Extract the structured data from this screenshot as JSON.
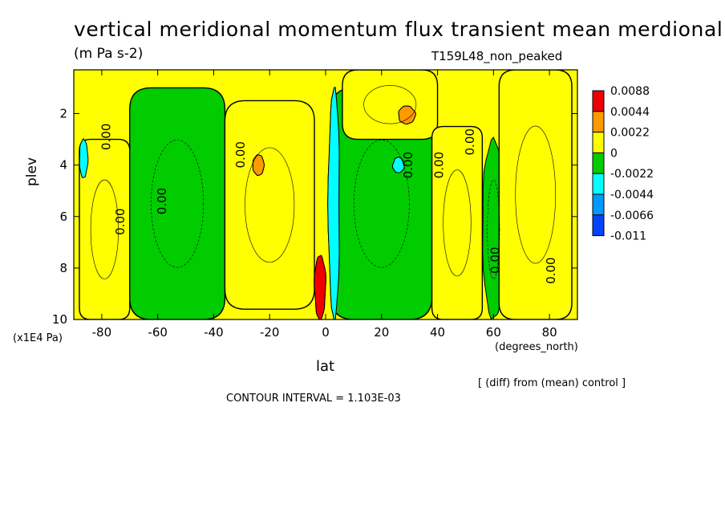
{
  "chart_data": {
    "type": "heatmap",
    "title": "vertical meridional momentum flux transient mean merdional",
    "units": "(m Pa s-2)",
    "case_label": "T159L48_non_peaked",
    "xlabel": "lat",
    "xunits": "(degrees_north)",
    "ylabel": "plev",
    "yunits": "(x1E4 Pa)",
    "xlim": [
      -90,
      90
    ],
    "ylim": [
      0.3,
      10
    ],
    "y_inverted": true,
    "x_ticks": [
      -80,
      -60,
      -40,
      -20,
      0,
      20,
      40,
      60,
      80
    ],
    "y_ticks": [
      2,
      4,
      6,
      8,
      10
    ],
    "difference_note": "[ (diff) from (mean) control ]",
    "contour_interval": "CONTOUR INTERVAL = 1.103E-03",
    "contour_label": "0.00",
    "legend": {
      "position": "right",
      "levels": [
        "0.0088",
        "0.0044",
        "0.0022",
        "0",
        "-0.0022",
        "-0.0044",
        "-0.0066",
        "-0.011"
      ],
      "colors": [
        "#ee0000",
        "#ff9900",
        "#ffff00",
        "#00cc00",
        "#00ffff",
        "#0099ff",
        "#0044ff"
      ]
    },
    "regions": [
      {
        "class": "positive",
        "lat": [
          -88,
          -70
        ],
        "plev": [
          3,
          10
        ],
        "color": "#ffff00"
      },
      {
        "class": "positive",
        "lat": [
          -36,
          -4
        ],
        "plev": [
          1.5,
          9.6
        ],
        "color": "#ffff00"
      },
      {
        "class": "positive",
        "lat": [
          6,
          40
        ],
        "plev": [
          0.3,
          3
        ],
        "color": "#ffff00"
      },
      {
        "class": "positive",
        "lat": [
          38,
          56
        ],
        "plev": [
          2.5,
          10
        ],
        "color": "#ffff00"
      },
      {
        "class": "positive",
        "lat": [
          62,
          88
        ],
        "plev": [
          0.3,
          10
        ],
        "color": "#ffff00"
      },
      {
        "class": "negative",
        "lat": [
          -70,
          -36
        ],
        "plev": [
          1,
          10
        ],
        "color": "#00cc00"
      },
      {
        "class": "negative",
        "lat": [
          2,
          38
        ],
        "plev": [
          1,
          10
        ],
        "color": "#00cc00"
      },
      {
        "class": "negative",
        "lat": [
          56,
          64
        ],
        "plev": [
          3,
          10
        ],
        "color": "#00cc00"
      },
      {
        "class": "local maximum",
        "lat": [
          -26,
          -22
        ],
        "plev": [
          3.6,
          4.4
        ],
        "color": "#ff9900"
      },
      {
        "class": "local maximum",
        "lat": [
          26,
          32
        ],
        "plev": [
          1.7,
          2.4
        ],
        "color": "#ff9900"
      },
      {
        "class": "local maximum",
        "lat": [
          -4,
          0
        ],
        "plev": [
          7.5,
          10
        ],
        "color": "#ee0000"
      },
      {
        "class": "local minimum",
        "lat": [
          1,
          5
        ],
        "plev": [
          1,
          10
        ],
        "color": "#00ffff"
      },
      {
        "class": "local minimum",
        "lat": [
          24,
          28
        ],
        "plev": [
          3.7,
          4.3
        ],
        "color": "#00ffff"
      },
      {
        "class": "local minimum",
        "lat": [
          -88,
          -85
        ],
        "plev": [
          3,
          4.5
        ],
        "color": "#00ffff"
      }
    ]
  }
}
